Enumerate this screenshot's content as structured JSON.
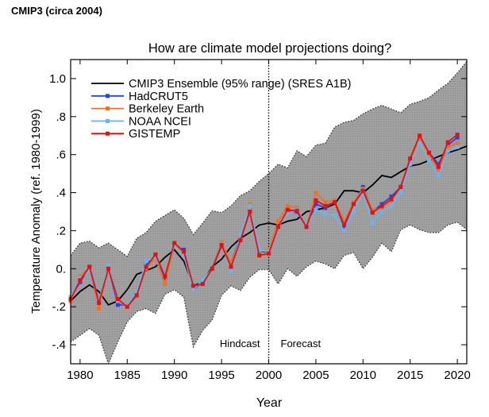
{
  "header": "CMIP3 (circa 2004)",
  "chart_data": {
    "type": "line",
    "title": "How are climate model projections doing?",
    "xlabel": "Year",
    "ylabel": "Temperature Anomaly (ref. 1980-1999)",
    "xlim": [
      1979,
      2021
    ],
    "ylim": [
      -0.5,
      1.1
    ],
    "xticks": [
      1980,
      1985,
      1990,
      1995,
      2000,
      2005,
      2010,
      2015,
      2020
    ],
    "xtick_labels": [
      "1980",
      "1985",
      "1990",
      "1995",
      "2000",
      "2005",
      "2010",
      "2015",
      "2020"
    ],
    "yticks": [
      -0.4,
      -0.2,
      0,
      0.2,
      0.4,
      0.6,
      0.8,
      1.0
    ],
    "ytick_labels": [
      "-.4",
      "-.2",
      "0.",
      ".2",
      ".4",
      ".6",
      ".8",
      "1.0"
    ],
    "grid": false,
    "legend_position": "top-left",
    "annotations": {
      "divider_year": 2000,
      "hindcast": "Hindcast",
      "forecast": "Forecast"
    },
    "ensemble": {
      "name": "CMIP3 Ensemble (95% range) (SRES A1B)",
      "color": "#000000",
      "band_color": "#9a9a9a",
      "x_start": 1979,
      "mean": [
        -0.17,
        -0.12,
        -0.085,
        -0.12,
        -0.19,
        -0.17,
        -0.11,
        -0.03,
        -0.01,
        0.01,
        0.06,
        0.1,
        0.04,
        -0.09,
        -0.07,
        0.01,
        0.05,
        0.115,
        0.16,
        0.19,
        0.23,
        0.24,
        0.23,
        0.25,
        0.26,
        0.3,
        0.31,
        0.32,
        0.34,
        0.41,
        0.41,
        0.4,
        0.44,
        0.49,
        0.48,
        0.51,
        0.54,
        0.55,
        0.57,
        0.59,
        0.61,
        0.625,
        0.645
      ],
      "upper": [
        0.07,
        0.135,
        0.145,
        0.11,
        0.135,
        0.1,
        0.065,
        0.16,
        0.19,
        0.25,
        0.28,
        0.31,
        0.265,
        0.18,
        0.24,
        0.305,
        0.295,
        0.33,
        0.385,
        0.41,
        0.46,
        0.5,
        0.55,
        0.53,
        0.62,
        0.59,
        0.65,
        0.66,
        0.745,
        0.77,
        0.78,
        0.815,
        0.84,
        0.86,
        0.84,
        0.82,
        0.865,
        0.88,
        0.9,
        0.94,
        0.975,
        1.03,
        1.09
      ],
      "lower": [
        -0.385,
        -0.35,
        -0.315,
        -0.35,
        -0.5,
        -0.385,
        -0.28,
        -0.225,
        -0.21,
        -0.235,
        -0.135,
        -0.11,
        -0.15,
        -0.41,
        -0.325,
        -0.27,
        -0.14,
        -0.09,
        -0.115,
        -0.045,
        -0.005,
        -0.005,
        -0.08,
        0.0,
        -0.04,
        0.01,
        0.04,
        0.025,
        0.0,
        0.07,
        0.085,
        0.0,
        0.06,
        0.135,
        0.09,
        0.205,
        0.23,
        0.205,
        0.19,
        0.19,
        0.23,
        0.245,
        0.205
      ]
    },
    "series_x_start": 1979,
    "series": [
      {
        "name": "HadCRUT5",
        "color": "#2b3ff2",
        "values": [
          -0.15,
          -0.07,
          0.01,
          -0.17,
          0.01,
          -0.19,
          -0.19,
          -0.13,
          0.02,
          0.07,
          -0.05,
          0.12,
          0.1,
          -0.11,
          -0.07,
          0.0,
          0.12,
          0.03,
          0.17,
          0.31,
          0.09,
          0.09,
          0.22,
          0.3,
          0.3,
          0.22,
          0.34,
          0.32,
          0.35,
          0.22,
          0.34,
          0.43,
          0.3,
          0.34,
          0.38,
          0.43,
          0.57,
          0.69,
          0.61,
          0.55,
          0.65,
          0.69
        ]
      },
      {
        "name": "Berkeley Earth",
        "color": "#e8742a",
        "values": [
          -0.17,
          -0.04,
          0.01,
          -0.21,
          0.01,
          -0.17,
          -0.2,
          -0.14,
          0.0,
          0.06,
          -0.08,
          0.13,
          0.08,
          -0.09,
          -0.08,
          0.0,
          0.14,
          0.03,
          0.16,
          0.34,
          0.09,
          0.1,
          0.25,
          0.33,
          0.32,
          0.22,
          0.4,
          0.35,
          0.36,
          0.25,
          0.35,
          0.42,
          0.31,
          0.32,
          0.36,
          0.43,
          0.56,
          0.69,
          0.6,
          0.52,
          0.64,
          0.66
        ]
      },
      {
        "name": "NOAA NCEI",
        "color": "#6db2f2",
        "values": [
          -0.15,
          -0.05,
          -0.01,
          -0.17,
          0.02,
          -0.17,
          -0.19,
          -0.12,
          0.04,
          0.06,
          -0.03,
          0.12,
          0.07,
          -0.11,
          -0.06,
          0.0,
          0.13,
          -0.01,
          0.18,
          0.33,
          0.1,
          0.09,
          0.22,
          0.29,
          0.31,
          0.23,
          0.31,
          0.29,
          0.28,
          0.2,
          0.3,
          0.4,
          0.24,
          0.3,
          0.33,
          0.4,
          0.55,
          0.66,
          0.57,
          0.49,
          0.62,
          0.64
        ]
      },
      {
        "name": "GISTEMP",
        "color": "#e01212",
        "values": [
          -0.16,
          -0.06,
          0.01,
          -0.18,
          0.0,
          -0.16,
          -0.2,
          -0.14,
          0.01,
          0.075,
          -0.04,
          0.135,
          0.09,
          -0.09,
          -0.08,
          0.0,
          0.125,
          0.01,
          0.15,
          0.3,
          0.07,
          0.08,
          0.22,
          0.31,
          0.305,
          0.22,
          0.36,
          0.33,
          0.35,
          0.23,
          0.34,
          0.41,
          0.295,
          0.33,
          0.365,
          0.43,
          0.58,
          0.7,
          0.61,
          0.535,
          0.665,
          0.705
        ]
      }
    ]
  }
}
